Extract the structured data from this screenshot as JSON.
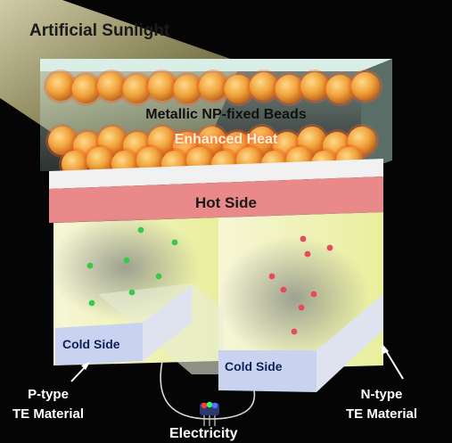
{
  "labels": {
    "light_source": "Artificial Sunlight",
    "beads": "Metallic NP-fixed Beads",
    "heat": "Enhanced Heat",
    "hot_side": "Hot Side",
    "cold_side_left": "Cold Side",
    "cold_side_right": "Cold Side",
    "p_type_line1": "P-type",
    "p_type_line2": "TE Material",
    "n_type_line1": "N-type",
    "n_type_line2": "TE Material",
    "output": "Electricity"
  },
  "colors": {
    "background": "#050505",
    "sunlight": "#fff59a",
    "bead": "#f0a23a",
    "heat_glow": "#ff5a20",
    "hot_plate": "#e9898a",
    "p_type_carriers": "#37c94a",
    "n_type_carriers": "#e64a5c",
    "te_leg": "#f3f4c6",
    "cold_plate": "#c9d2ee"
  }
}
